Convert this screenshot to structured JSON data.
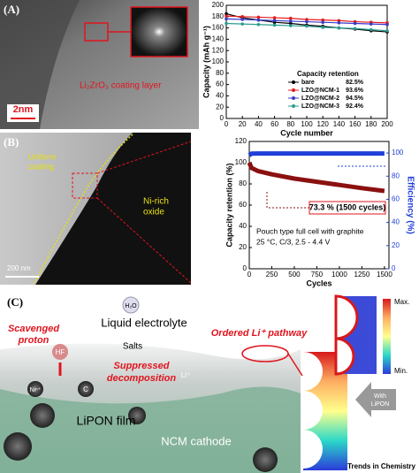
{
  "panel_labels": [
    "(A)",
    "(B)",
    "(C)"
  ],
  "panel_a": {
    "coating_label": "Li₂ZrO₃ coating layer",
    "scale_bar": "2nm"
  },
  "panel_b": {
    "coating_label": [
      "Uniform",
      "coating"
    ],
    "oxide_label": [
      "Ni-rich",
      "oxide"
    ],
    "scale_bar": "200 nm"
  },
  "chart_data": [
    {
      "type": "line",
      "markers": true,
      "x_label": "Cycle number",
      "y_label": "Capacity (mAh g⁻¹)",
      "x": [
        0,
        20,
        40,
        60,
        80,
        100,
        120,
        140,
        160,
        180,
        200
      ],
      "xlim": [
        0,
        200
      ],
      "xticks": [
        0,
        20,
        40,
        60,
        80,
        100,
        120,
        140,
        160,
        180,
        200
      ],
      "ylim": [
        0,
        200
      ],
      "yticks": [
        0,
        20,
        40,
        60,
        80,
        100,
        120,
        140,
        160,
        180,
        200
      ],
      "legend": "lower right",
      "legend_title": "Capacity retention",
      "series": [
        {
          "name": "bare",
          "retention": "82.5%",
          "color": "#000000",
          "values": [
            185,
            178,
            174,
            170,
            168,
            165,
            163,
            160,
            158,
            155,
            153
          ]
        },
        {
          "name": "LZO@NCM-1",
          "retention": "93.6%",
          "color": "#e31a1c",
          "values": [
            181,
            180,
            179,
            178,
            177,
            175,
            174,
            173,
            171,
            170,
            169
          ]
        },
        {
          "name": "LZO@NCM-2",
          "retention": "94.5%",
          "color": "#3a3ac8",
          "values": [
            176,
            175,
            174,
            173,
            172,
            171,
            170,
            169,
            168,
            167,
            166
          ]
        },
        {
          "name": "LZO@NCM-3",
          "retention": "92.4%",
          "color": "#2a9d8f",
          "values": [
            168,
            167,
            166,
            165,
            164,
            163,
            161,
            160,
            159,
            157,
            155
          ]
        }
      ]
    },
    {
      "type": "line",
      "markers": false,
      "x_label": "Cycles",
      "y_label": "Capacity retention (%)",
      "y2_label": "Efficiency (%)",
      "y2_color": "#1f3fd8",
      "x": [
        0,
        25,
        100,
        250,
        500,
        750,
        1000,
        1250,
        1500
      ],
      "xlim": [
        0,
        1550
      ],
      "xticks": [
        0,
        250,
        500,
        750,
        1000,
        1250,
        1500
      ],
      "ylim": [
        0,
        120
      ],
      "yticks": [
        0,
        20,
        40,
        60,
        80,
        100,
        120
      ],
      "y2lim": [
        0,
        110
      ],
      "y2ticks": [
        0,
        20,
        40,
        60,
        80,
        100
      ],
      "annotations": [
        "73.3 % (1500 cycles)",
        "Pouch type full cell with graphite",
        "25 °C, C/3, 2.5 - 4.4 V"
      ],
      "series": [
        {
          "name": "Capacity retention",
          "color": "#8b1010",
          "values": [
            100,
            95,
            92,
            89,
            85,
            82,
            79,
            76,
            73.3
          ]
        },
        {
          "name": "Efficiency",
          "color": "#1f3fd8",
          "axis": "y2",
          "values": [
            98,
            99.5,
            99.6,
            99.6,
            99.6,
            99.6,
            99.6,
            99.6,
            99.6
          ]
        }
      ]
    }
  ],
  "panel_c": {
    "water": "H₂O",
    "electrolyte": "Liquid electrolyte",
    "scavenged": [
      "Scavenged",
      "proton"
    ],
    "hf": "HF",
    "salts": "Salts",
    "pathway": "Ordered Li⁺ pathway",
    "li": "Li⁺",
    "suppressed": [
      "Suppressed",
      "decomposition"
    ],
    "ni": "Niⁿ⁺",
    "carbon": "C",
    "film": "LiPON film",
    "cathode": "NCM cathode",
    "with": [
      "With",
      "LiPON"
    ],
    "max": "Max.",
    "min": "Min."
  },
  "credit": "Trends in Chemistry"
}
